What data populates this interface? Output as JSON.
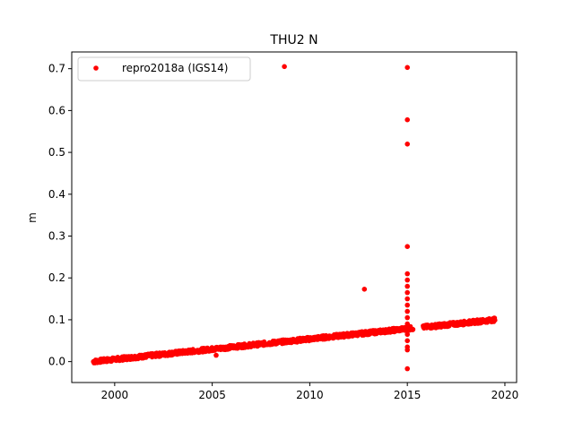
{
  "chart_data": {
    "type": "scatter",
    "title": "THU2 N",
    "xlabel": "",
    "ylabel": "m",
    "xlim": [
      1997.8,
      2020.6
    ],
    "ylim": [
      -0.05,
      0.74
    ],
    "xticks": [
      2000,
      2005,
      2010,
      2015,
      2020
    ],
    "yticks": [
      0.0,
      0.1,
      0.2,
      0.3,
      0.4,
      0.5,
      0.6,
      0.7
    ],
    "ytick_labels": [
      "0.0",
      "0.1",
      "0.2",
      "0.3",
      "0.4",
      "0.5",
      "0.6",
      "0.7"
    ],
    "legend_position": "upper-left",
    "color": "#ff0000",
    "series": [
      {
        "name": "repro2018a (IGS14)",
        "trend_segments": [
          {
            "x_start": 1998.9,
            "x_end": 2015.3,
            "y_start": 0.0,
            "y_end": 0.08
          },
          {
            "x_start": 2015.8,
            "x_end": 2019.5,
            "y_start": 0.082,
            "y_end": 0.1
          }
        ],
        "outliers": [
          {
            "x": 2005.2,
            "y": 0.015
          },
          {
            "x": 2008.7,
            "y": 0.705
          },
          {
            "x": 2012.8,
            "y": 0.173
          },
          {
            "x": 2015.0,
            "y": 0.703
          },
          {
            "x": 2015.0,
            "y": 0.578
          },
          {
            "x": 2015.0,
            "y": 0.52
          },
          {
            "x": 2015.0,
            "y": 0.275
          },
          {
            "x": 2015.0,
            "y": 0.21
          },
          {
            "x": 2015.0,
            "y": 0.195
          },
          {
            "x": 2015.0,
            "y": 0.18
          },
          {
            "x": 2015.0,
            "y": 0.165
          },
          {
            "x": 2015.0,
            "y": 0.15
          },
          {
            "x": 2015.0,
            "y": 0.135
          },
          {
            "x": 2015.0,
            "y": 0.12
          },
          {
            "x": 2015.0,
            "y": 0.105
          },
          {
            "x": 2015.0,
            "y": 0.09
          },
          {
            "x": 2015.0,
            "y": 0.065
          },
          {
            "x": 2015.0,
            "y": 0.05
          },
          {
            "x": 2015.0,
            "y": 0.035
          },
          {
            "x": 2015.0,
            "y": 0.028
          },
          {
            "x": 2015.0,
            "y": -0.017
          }
        ]
      }
    ]
  }
}
